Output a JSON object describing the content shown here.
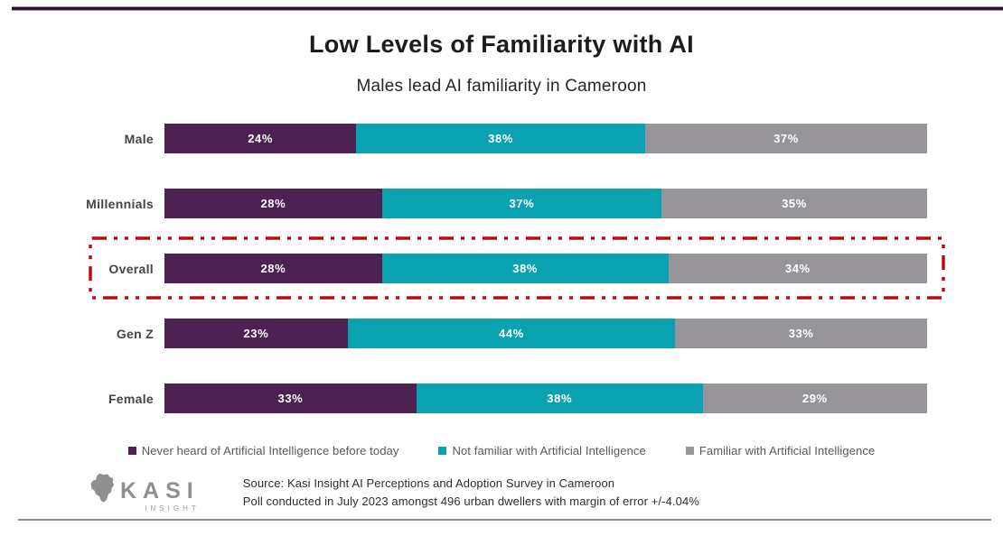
{
  "chart_data": {
    "type": "bar",
    "orientation": "horizontal",
    "stacked": true,
    "title": "Low Levels of Familiarity with AI",
    "subtitle": "Males lead AI familiarity in Cameroon",
    "categories": [
      "Male",
      "Millennials",
      "Overall",
      "Gen Z",
      "Female"
    ],
    "series": [
      {
        "name": "Never heard of Artificial Intelligence before today",
        "color": "#4D2253",
        "values": [
          24,
          28,
          28,
          23,
          33
        ]
      },
      {
        "name": "Not familiar with Artificial Intelligence",
        "color": "#0AA2B0",
        "values": [
          38,
          37,
          38,
          44,
          38
        ]
      },
      {
        "name": "Familiar with Artificial Intelligence",
        "color": "#97949A",
        "values": [
          37,
          35,
          34,
          33,
          29
        ]
      }
    ],
    "value_suffix": "%",
    "value_labels": "inside, white",
    "axis": "none",
    "grid": false,
    "legend_position": "bottom",
    "highlighted_category": "Overall",
    "highlight_color": "#BE0A0A",
    "highlight_style": "red dash-dot outline around Overall row"
  },
  "footer": {
    "source_line1": "Source: Kasi Insight AI Perceptions and Adoption Survey in Cameroon",
    "source_line2": "Poll conducted in July 2023 amongst 496 urban dwellers with margin of error +/-4.04%",
    "logo_text": "KASI",
    "logo_subtext": "INSIGHT"
  },
  "decor": {
    "top_rule_color": "#30102F",
    "bottom_rule_color": "#8C8C8C"
  }
}
